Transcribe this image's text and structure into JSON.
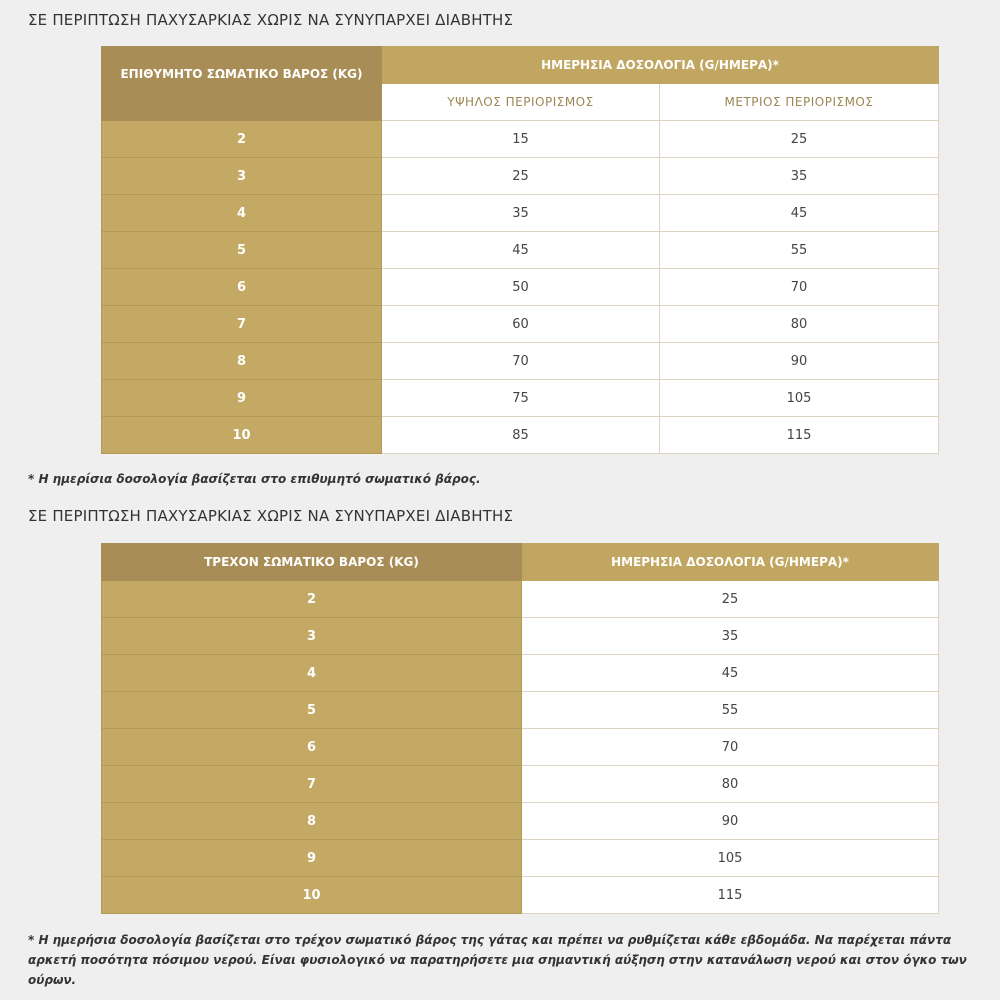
{
  "sections": [
    {
      "heading": "ΣΕ ΠΕΡΙΠΤΩΣΗ ΠΑΧΥΣΑΡΚΙΑΣ ΧΩΡΙΣ ΝΑ ΣΥΝΥΠΑΡΧΕΙ ΔΙΑΒΗΤΗΣ",
      "table": {
        "header": {
          "weight": "ΕΠΙΘΥΜΗΤΟ ΣΩΜΑΤΙΚΟ ΒΑΡΟΣ (KG)",
          "dosage": "ΗΜΕΡΗΣΙΑ ΔΟΣΟΛΟΓΙΑ (G/ΗΜΕΡΑ)*",
          "subheaders": [
            "ΥΨΗΛΟΣ ΠΕΡΙΟΡΙΣΜΟΣ",
            "ΜΕΤΡΙΟΣ ΠΕΡΙΟΡΙΣΜΟΣ"
          ]
        },
        "rows": [
          [
            "2",
            "15",
            "25"
          ],
          [
            "3",
            "25",
            "35"
          ],
          [
            "4",
            "35",
            "45"
          ],
          [
            "5",
            "45",
            "55"
          ],
          [
            "6",
            "50",
            "70"
          ],
          [
            "7",
            "60",
            "80"
          ],
          [
            "8",
            "70",
            "90"
          ],
          [
            "9",
            "75",
            "105"
          ],
          [
            "10",
            "85",
            "115"
          ]
        ]
      },
      "note": "* Η ημερίσια δοσολογία βασίζεται στο επιθυμητό σωματικό βάρος."
    },
    {
      "heading": "ΣΕ ΠΕΡΙΠΤΩΣΗ ΠΑΧΥΣΑΡΚΙΑΣ ΧΩΡΙΣ ΝΑ ΣΥΝΥΠΑΡΧΕΙ ΔΙΑΒΗΤΗΣ",
      "table": {
        "header": {
          "weight": "ΤΡΕΧΟΝ ΣΩΜΑΤΙΚΟ ΒΑΡΟΣ (KG)",
          "dosage": "ΗΜΕΡΗΣΙΑ ΔΟΣΟΛΟΓΙΑ (G/ΗΜΕΡΑ)*"
        },
        "rows": [
          [
            "2",
            "25"
          ],
          [
            "3",
            "35"
          ],
          [
            "4",
            "45"
          ],
          [
            "5",
            "55"
          ],
          [
            "6",
            "70"
          ],
          [
            "7",
            "80"
          ],
          [
            "8",
            "90"
          ],
          [
            "9",
            "105"
          ],
          [
            "10",
            "115"
          ]
        ]
      },
      "note": "* Η ημερήσια δοσολογία βασίζεται στο τρέχον σωματικό βάρος της γάτας και πρέπει να ρυθμίζεται κάθε εβδομάδα. Να παρέχεται πάντα αρκετή ποσότητα πόσιμου νερού. Είναι φυσιολογικό να παρατηρήσετε μια σημαντική αύξηση στην κατανάλωση νερού και στον όγκο των ούρων."
    }
  ]
}
